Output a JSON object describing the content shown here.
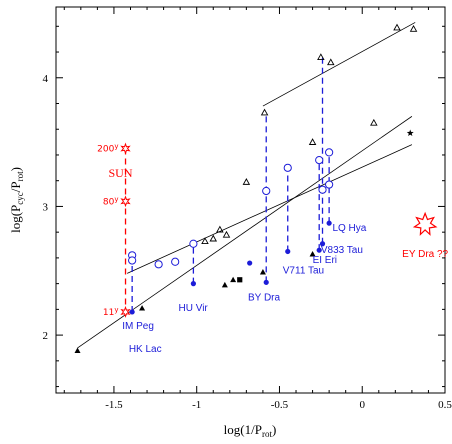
{
  "chart_data": {
    "type": "scatter",
    "xlabel": "log(1/P_rot)",
    "ylabel": "log(P_cyc/P_rot)",
    "xlim": [
      -1.85,
      0.5
    ],
    "ylim": [
      1.55,
      4.55
    ],
    "x_ticks": [
      -1.5,
      -1,
      -0.5,
      0,
      0.5
    ],
    "x_tick_labels": [
      "-1.5",
      "-1",
      "-0.5",
      "0",
      "0.5"
    ],
    "y_ticks": [
      2,
      3,
      4
    ],
    "y_tick_labels": [
      "2",
      "3",
      "4"
    ],
    "colors": {
      "blue": "#1c1cd8",
      "red": "#ff0000",
      "black": "#000000"
    },
    "series": [
      {
        "marker": "filled-triangle",
        "points": [
          [
            -1.72,
            1.88
          ],
          [
            -1.33,
            2.21
          ],
          [
            -0.83,
            2.39
          ],
          [
            -0.78,
            2.43
          ],
          [
            -0.6,
            2.49
          ],
          [
            -0.3,
            2.63
          ]
        ]
      },
      {
        "marker": "filled-circle",
        "points": [
          [
            -1.39,
            2.18
          ],
          [
            -1.02,
            2.4
          ],
          [
            -0.68,
            2.56
          ],
          [
            -0.58,
            2.41
          ],
          [
            -0.45,
            2.65
          ],
          [
            -0.26,
            2.66
          ],
          [
            -0.24,
            2.71
          ],
          [
            -0.2,
            2.87
          ]
        ]
      },
      {
        "marker": "filled-square",
        "points": [
          [
            -0.74,
            2.43
          ]
        ]
      },
      {
        "marker": "filled-star",
        "points": [
          [
            0.29,
            3.57
          ]
        ]
      },
      {
        "marker": "open-circle",
        "points": [
          [
            -1.39,
            2.62
          ],
          [
            -1.39,
            2.58
          ],
          [
            -1.23,
            2.55
          ],
          [
            -1.13,
            2.57
          ],
          [
            -1.02,
            2.71
          ],
          [
            -0.58,
            3.12
          ],
          [
            -0.45,
            3.3
          ],
          [
            -0.26,
            3.36
          ],
          [
            -0.24,
            3.13
          ],
          [
            -0.2,
            3.42
          ],
          [
            -0.2,
            3.17
          ]
        ]
      },
      {
        "marker": "open-triangle",
        "points": [
          [
            -0.95,
            2.73
          ],
          [
            -0.9,
            2.75
          ],
          [
            -0.86,
            2.82
          ],
          [
            -0.82,
            2.78
          ],
          [
            -0.7,
            3.19
          ],
          [
            -0.59,
            3.73
          ],
          [
            -0.3,
            3.5
          ],
          [
            -0.25,
            4.16
          ],
          [
            -0.19,
            4.12
          ],
          [
            0.07,
            3.65
          ],
          [
            0.21,
            4.39
          ],
          [
            0.31,
            4.38
          ]
        ]
      }
    ],
    "sun": {
      "x": -1.43,
      "points": [
        {
          "y": 3.45,
          "label": "200y"
        },
        {
          "y": 3.04,
          "label": "80y"
        },
        {
          "y": 2.18,
          "label": "11y"
        }
      ],
      "name": "SUN"
    },
    "ey_dra": {
      "x": 0.38,
      "y": 2.86,
      "label": "EY Dra ??"
    },
    "vertical_links": [
      {
        "x": -1.39,
        "y1": 2.18,
        "y2": 2.62
      },
      {
        "x": -1.02,
        "y1": 2.4,
        "y2": 2.71
      },
      {
        "x": -0.58,
        "y1": 2.41,
        "y2": 3.73
      },
      {
        "x": -0.45,
        "y1": 2.65,
        "y2": 3.3
      },
      {
        "x": -0.26,
        "y1": 2.66,
        "y2": 3.36
      },
      {
        "x": -0.24,
        "y1": 2.71,
        "y2": 4.16
      },
      {
        "x": -0.2,
        "y1": 2.87,
        "y2": 3.42
      }
    ],
    "fit_lines": [
      {
        "from": [
          -1.72,
          1.9
        ],
        "to": [
          0.3,
          3.7
        ]
      },
      {
        "from": [
          -1.42,
          2.48
        ],
        "to": [
          0.3,
          3.48
        ]
      },
      {
        "from": [
          -0.6,
          3.78
        ],
        "to": [
          0.32,
          4.43
        ]
      }
    ],
    "annotations": [
      {
        "text": "IM Peg",
        "x": -1.45,
        "y": 2.08
      },
      {
        "text": "HK Lac",
        "x": -1.41,
        "y": 1.9
      },
      {
        "text": "HU Vir",
        "x": -1.11,
        "y": 2.22
      },
      {
        "text": "BY Dra",
        "x": -0.69,
        "y": 2.3
      },
      {
        "text": "V711 Tau",
        "x": -0.48,
        "y": 2.51
      },
      {
        "text": "EI Eri",
        "x": -0.3,
        "y": 2.59
      },
      {
        "text": "V833 Tau",
        "x": -0.25,
        "y": 2.67
      },
      {
        "text": "LQ Hya",
        "x": -0.18,
        "y": 2.84
      }
    ]
  }
}
